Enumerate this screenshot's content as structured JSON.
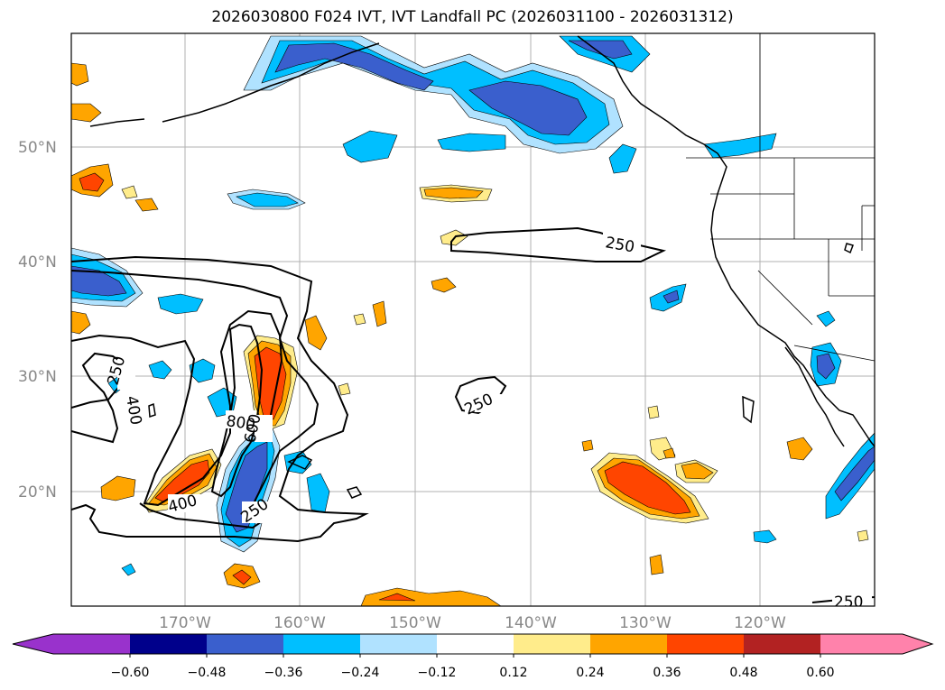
{
  "title": "2026030800 F024 IVT, IVT Landfall PC (2026031100 - 2026031312)",
  "lat_labels": [
    "50°N",
    "40°N",
    "30°N",
    "20°N"
  ],
  "lon_labels": [
    "170°W",
    "160°W",
    "150°W",
    "140°W",
    "130°W",
    "120°W"
  ],
  "colorbar": {
    "ticks": [
      "−0.60",
      "−0.48",
      "−0.36",
      "−0.24",
      "−0.12",
      "0.12",
      "0.24",
      "0.36",
      "0.48",
      "0.60"
    ],
    "colors": [
      "#9932cc",
      "#00008b",
      "#3a5fcd",
      "#00bfff",
      "#b0e2ff",
      "#ffffff",
      "#ffec8b",
      "#ffa500",
      "#ff4500",
      "#b22222",
      "#ff82ab"
    ]
  },
  "contour_labels": [
    "250",
    "250",
    "250",
    "400",
    "800",
    "600",
    "400",
    "250",
    "250"
  ]
}
